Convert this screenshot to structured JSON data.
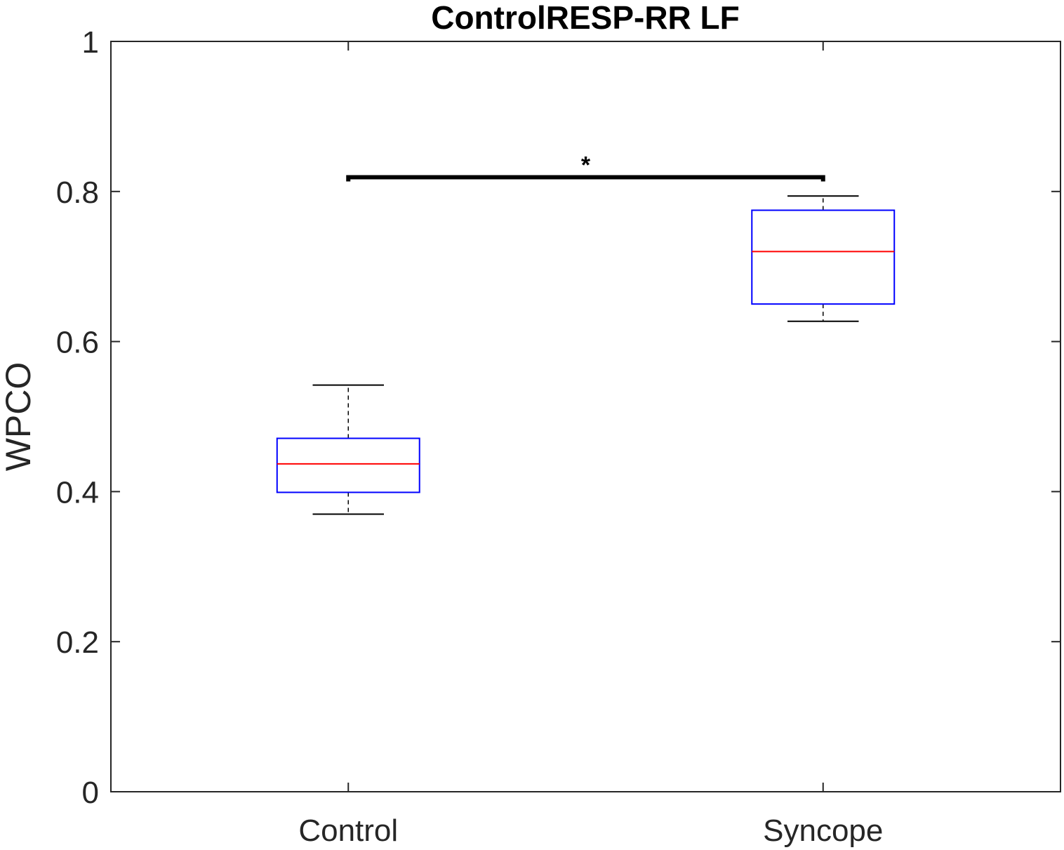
{
  "chart_data": {
    "type": "box",
    "title": "ControlRESP-RR LF",
    "xlabel": "",
    "ylabel": "WPCO",
    "ylim": [
      0,
      1
    ],
    "yticks": [
      "0",
      "0.2",
      "0.4",
      "0.6",
      "0.8",
      "1"
    ],
    "categories": [
      "Control",
      "Syncope"
    ],
    "boxes": [
      {
        "label": "Control",
        "whisker_low": 0.37,
        "q1": 0.399,
        "median": 0.437,
        "q3": 0.471,
        "whisker_high": 0.542
      },
      {
        "label": "Syncope",
        "whisker_low": 0.627,
        "q1": 0.65,
        "median": 0.72,
        "q3": 0.775,
        "whisker_high": 0.794
      }
    ],
    "significance": {
      "between": [
        "Control",
        "Syncope"
      ],
      "y": 0.819,
      "label": "*"
    },
    "colors": {
      "box": "#0000ff",
      "median": "#ff0000",
      "whisker": "#000000",
      "axis": "#262626"
    },
    "grid": false,
    "legend": "none"
  }
}
